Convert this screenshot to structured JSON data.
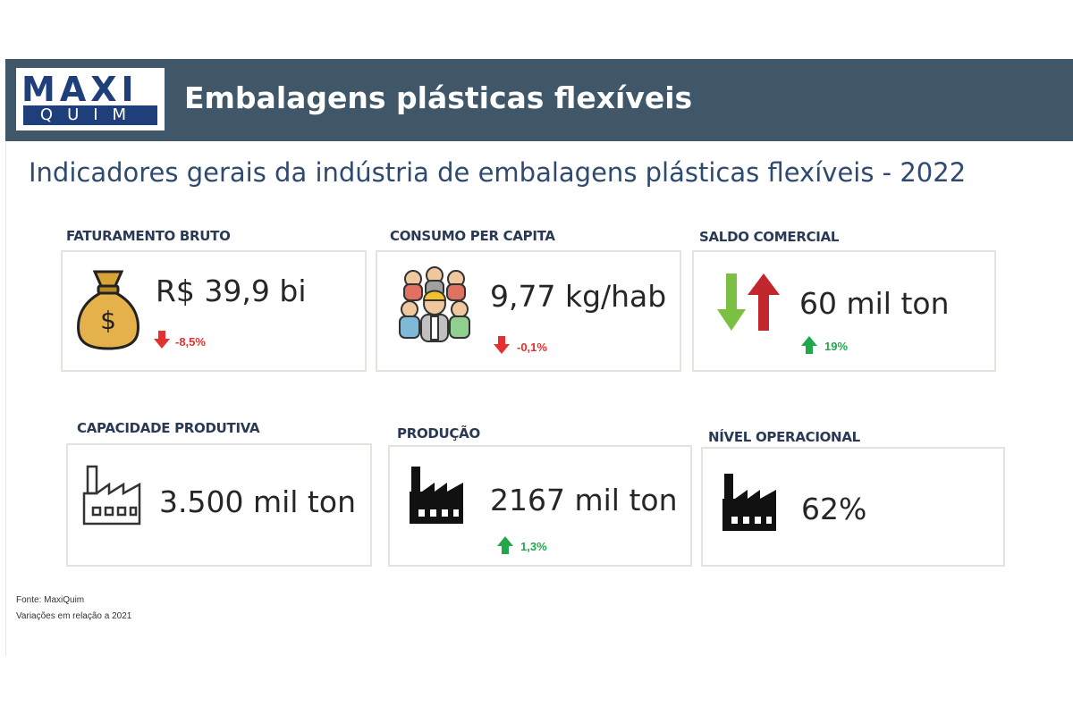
{
  "header": {
    "logo_top": "MAXI",
    "logo_bottom": "QUIM",
    "title": "Embalagens plásticas flexíveis"
  },
  "subtitle": "Indicadores gerais da indústria de embalagens plásticas flexíveis - 2022",
  "indicators": [
    {
      "label": "FATURAMENTO BRUTO",
      "value": "R$ 39,9 bi",
      "delta": "-8,5%",
      "direction": "down",
      "icon": "money-bag-icon"
    },
    {
      "label": "CONSUMO PER CAPITA",
      "value": "9,77 kg/hab",
      "delta": "-0,1%",
      "direction": "down",
      "icon": "people-group-icon"
    },
    {
      "label": "SALDO COMERCIAL",
      "value": "60 mil ton",
      "delta": "19%",
      "direction": "up",
      "icon": "trade-arrows-icon"
    },
    {
      "label": "CAPACIDADE PRODUTIVA",
      "value": "3.500 mil ton",
      "delta": "",
      "direction": "",
      "icon": "factory-outline-icon"
    },
    {
      "label": "PRODUÇÃO",
      "value": "2167 mil ton",
      "delta": "1,3%",
      "direction": "up",
      "icon": "factory-icon"
    },
    {
      "label": "NÍVEL OPERACIONAL",
      "value": "62%",
      "delta": "",
      "direction": "",
      "icon": "factory-icon"
    }
  ],
  "footer": {
    "source": "Fonte: MaxiQuim",
    "note": "Variações em relação a 2021"
  },
  "colors": {
    "header_bg": "#3f5769",
    "logo_blue": "#1f3f7a",
    "down": "#e53030",
    "up": "#22a84a"
  }
}
